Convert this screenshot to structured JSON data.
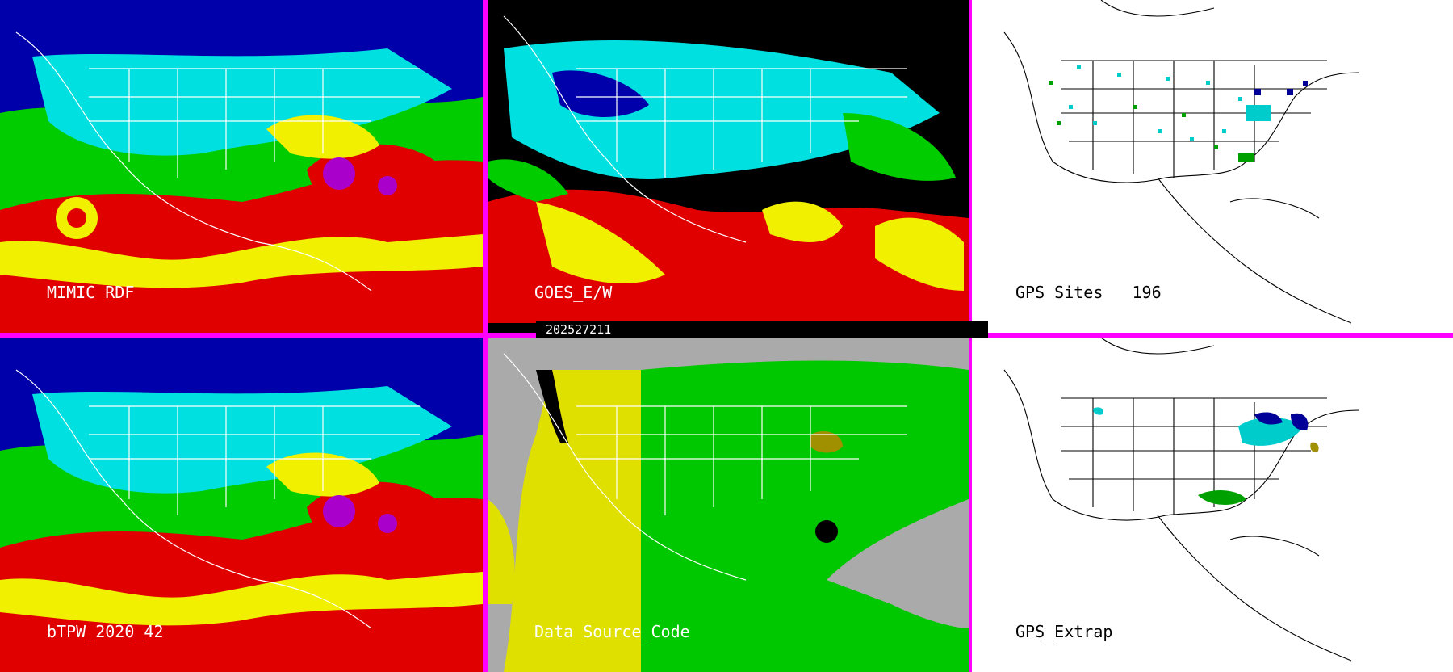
{
  "panels": {
    "p1": {
      "label": "MIMIC RDF"
    },
    "p2": {
      "label": "GOES_E/W"
    },
    "p3": {
      "label": "GPS Sites",
      "count": "196"
    },
    "p4": {
      "label": "bTPW_2020_42"
    },
    "p5": {
      "label": "Data_Source_Code"
    },
    "p6": {
      "label": "GPS_Extrap"
    }
  },
  "timestamp": "202527211",
  "colors": {
    "divider": "#ff00ff",
    "very_dry": "#0000aa",
    "dry": "#00e0e0",
    "moderate": "#00cc00",
    "moist": "#f0f000",
    "very_moist": "#e00000",
    "extreme": "#aa00cc",
    "source_gray": "#aaaaaa",
    "source_yellow": "#e0e000",
    "source_green": "#00c800"
  }
}
